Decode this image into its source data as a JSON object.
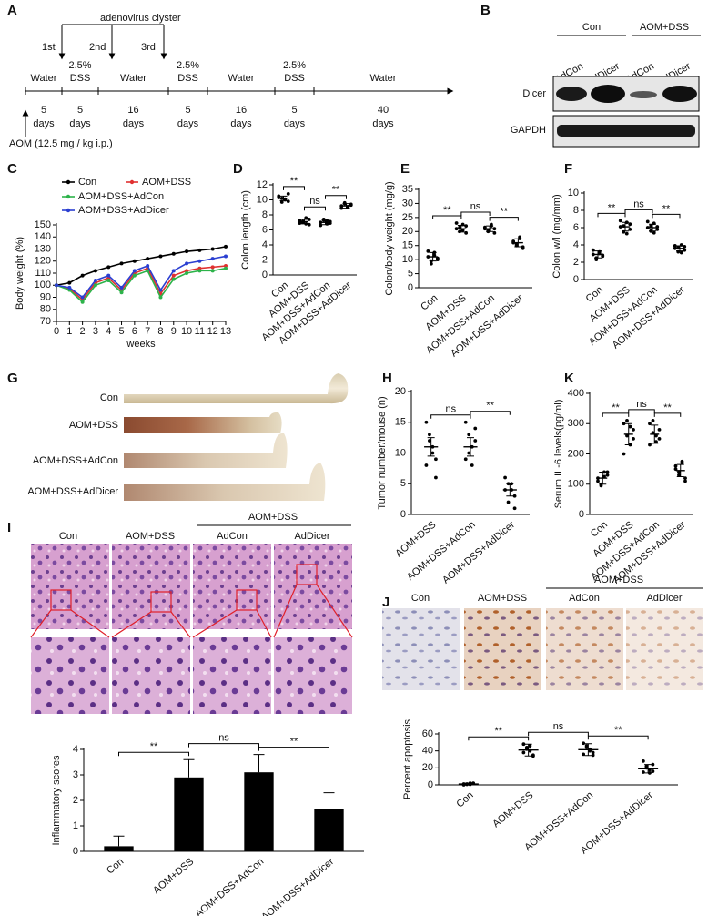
{
  "panels": [
    "A",
    "B",
    "C",
    "D",
    "E",
    "F",
    "G",
    "H",
    "K",
    "I",
    "J"
  ],
  "timeline": {
    "title": "adenovirus clyster",
    "doses": [
      "1st",
      "2nd",
      "3rd"
    ],
    "phases": [
      {
        "treatment": [
          "Water"
        ],
        "duration": [
          "5",
          "days"
        ]
      },
      {
        "treatment": [
          "2.5%",
          "DSS"
        ],
        "duration": [
          "5",
          "days"
        ]
      },
      {
        "treatment": [
          "Water"
        ],
        "duration": [
          "16",
          "days"
        ]
      },
      {
        "treatment": [
          "2.5%",
          "DSS"
        ],
        "duration": [
          "5",
          "days"
        ]
      },
      {
        "treatment": [
          "Water"
        ],
        "duration": [
          "16",
          "days"
        ]
      },
      {
        "treatment": [
          "2.5%",
          "DSS"
        ],
        "duration": [
          "5",
          "days"
        ]
      },
      {
        "treatment": [
          "Water"
        ],
        "duration": [
          "40",
          "days"
        ]
      }
    ],
    "aom": "AOM (12.5 mg / kg i.p.)"
  },
  "blot": {
    "groups": [
      "Con",
      "AOM+DSS"
    ],
    "lanes": [
      "AdCon",
      "AdDicer",
      "AdCon",
      "AdDicer"
    ],
    "proteins": [
      "Dicer",
      "GAPDH"
    ]
  },
  "colon_photos": {
    "labels": [
      "Con",
      "AOM+DSS",
      "AOM+DSS+AdCon",
      "AOM+DSS+AdDicer"
    ]
  },
  "histology": {
    "group": "AOM+DSS",
    "labels": [
      "Con",
      "AOM+DSS",
      "AdCon",
      "AdDicer"
    ]
  },
  "ihc": {
    "group": "AOM+DSS",
    "labels": [
      "Con",
      "AOM+DSS",
      "AdCon",
      "AdDicer"
    ]
  },
  "chart_data": [
    {
      "type": "line",
      "xlabel": "weeks",
      "ylabel": "Body weight (%)",
      "x": [
        0,
        1,
        2,
        3,
        4,
        5,
        6,
        7,
        8,
        9,
        10,
        11,
        12,
        13
      ],
      "xlim": [
        0,
        13
      ],
      "xticks": [
        0,
        1,
        2,
        3,
        4,
        5,
        6,
        7,
        8,
        9,
        10,
        11,
        12,
        13
      ],
      "ylim": [
        70,
        150
      ],
      "yticks": [
        70,
        80,
        90,
        100,
        110,
        120,
        130,
        140,
        150
      ],
      "series": [
        {
          "name": "Con",
          "color": "#000000",
          "values": [
            100,
            102,
            108,
            112,
            115,
            118,
            120,
            122,
            124,
            126,
            128,
            129,
            130,
            132
          ]
        },
        {
          "name": "AOM+DSS",
          "color": "#e03030",
          "values": [
            100,
            97,
            88,
            102,
            106,
            96,
            110,
            114,
            93,
            108,
            112,
            114,
            115,
            116
          ]
        },
        {
          "name": "AOM+DSS+AdCon",
          "color": "#2db34a",
          "values": [
            100,
            96,
            86,
            100,
            104,
            94,
            108,
            112,
            90,
            105,
            110,
            112,
            112,
            114
          ]
        },
        {
          "name": "AOM+DSS+AdDicer",
          "color": "#2b3fd1",
          "values": [
            100,
            98,
            90,
            104,
            108,
            98,
            112,
            116,
            96,
            112,
            118,
            120,
            122,
            124
          ]
        }
      ]
    },
    {
      "type": "dot",
      "ylabel": "Colon length (cm)",
      "categories": [
        "Con",
        "AOM+DSS",
        "AOM+DSS+AdCon",
        "AOM+DSS+AdDicer"
      ],
      "ylim": [
        0,
        12
      ],
      "yticks": [
        0,
        2,
        4,
        6,
        8,
        10,
        12
      ],
      "values": [
        10.2,
        7.1,
        7.0,
        9.2
      ],
      "errors": [
        0.3,
        0.3,
        0.3,
        0.3
      ],
      "points": [
        [
          10.5,
          10.2,
          10,
          9.8,
          10.3,
          9.7,
          10.1,
          10.8
        ],
        [
          7.2,
          7,
          6.8,
          7.4,
          6.9,
          7.1,
          7.6,
          6.7
        ],
        [
          7,
          7.3,
          6.8,
          7.1,
          6.6,
          7.4,
          7.2,
          6.9
        ],
        [
          9.2,
          9.5,
          9,
          9.3,
          8.9,
          9.6,
          9.1,
          9.4
        ]
      ],
      "comparisons": [
        {
          "label": "**",
          "between": [
            0,
            1
          ]
        },
        {
          "label": "ns",
          "between": [
            1,
            2
          ]
        },
        {
          "label": "**",
          "between": [
            2,
            3
          ]
        }
      ]
    },
    {
      "type": "dot",
      "ylabel": "Colon/body weight (mg/g)",
      "categories": [
        "Con",
        "AOM+DSS",
        "AOM+DSS+AdCon",
        "AOM+DSS+AdDicer"
      ],
      "ylim": [
        0,
        35
      ],
      "yticks": [
        0,
        5,
        10,
        15,
        20,
        25,
        30,
        35
      ],
      "values": [
        11,
        21,
        21,
        16
      ],
      "errors": [
        1.5,
        1.2,
        1,
        1.4
      ],
      "points": [
        [
          11,
          9.5,
          12.5,
          10,
          13,
          8.5,
          11.5,
          10.5
        ],
        [
          21,
          20,
          22.5,
          19.5,
          23,
          21.5,
          20.5,
          22
        ],
        [
          21,
          20.5,
          22,
          19.5,
          21.5,
          20,
          22.5,
          21
        ],
        [
          16,
          15,
          17.5,
          14.5,
          16.5,
          15.5,
          18,
          14
        ]
      ],
      "comparisons": [
        {
          "label": "**",
          "between": [
            0,
            1
          ]
        },
        {
          "label": "ns",
          "between": [
            1,
            2
          ]
        },
        {
          "label": "**",
          "between": [
            2,
            3
          ]
        }
      ]
    },
    {
      "type": "dot",
      "ylabel": "Colon w/l (mg/mm)",
      "categories": [
        "Con",
        "AOM+DSS",
        "AOM+DSS+AdCon",
        "AOM+DSS+AdDicer"
      ],
      "ylim": [
        0,
        10
      ],
      "yticks": [
        0,
        2,
        4,
        6,
        8,
        10
      ],
      "values": [
        2.9,
        6.1,
        6.0,
        3.6
      ],
      "errors": [
        0.4,
        0.5,
        0.4,
        0.3
      ],
      "points": [
        [
          2.9,
          2.5,
          3.2,
          2.7,
          3.4,
          2.3,
          3,
          2.8
        ],
        [
          6.1,
          5.5,
          6.6,
          5.8,
          6.8,
          6.2,
          5.3,
          6.4
        ],
        [
          6,
          5.6,
          6.5,
          5.8,
          6.7,
          6.2,
          5.4,
          6.1
        ],
        [
          3.6,
          3.2,
          4,
          3.4,
          3.9,
          3.7,
          3.1,
          3.8
        ]
      ],
      "comparisons": [
        {
          "label": "**",
          "between": [
            0,
            1
          ]
        },
        {
          "label": "ns",
          "between": [
            1,
            2
          ]
        },
        {
          "label": "**",
          "between": [
            2,
            3
          ]
        }
      ]
    },
    {
      "type": "dot",
      "ylabel": "Tumor number/mouse (n)",
      "categories": [
        "AOM+DSS",
        "AOM+DSS+AdCon",
        "AOM+DSS+AdDicer"
      ],
      "ylim": [
        0,
        20
      ],
      "yticks": [
        0,
        5,
        10,
        15,
        20
      ],
      "values": [
        11,
        11,
        4
      ],
      "errors": [
        1.5,
        1.5,
        1
      ],
      "points": [
        [
          15,
          13,
          11,
          9,
          8,
          12,
          10,
          6
        ],
        [
          15,
          13,
          11,
          12,
          9,
          10,
          8,
          14
        ],
        [
          6,
          5,
          4,
          3,
          4,
          2,
          5,
          1
        ]
      ],
      "comparisons": [
        {
          "label": "ns",
          "between": [
            0,
            1
          ]
        },
        {
          "label": "**",
          "between": [
            1,
            2
          ]
        }
      ]
    },
    {
      "type": "dot",
      "ylabel": "Serum IL-6 levels(pg/ml)",
      "categories": [
        "Con",
        "AOM+DSS",
        "AOM+DSS+AdCon",
        "AOM+DSS+AdDicer"
      ],
      "ylim": [
        0,
        400
      ],
      "yticks": [
        0,
        100,
        200,
        300,
        400
      ],
      "values": [
        120,
        265,
        265,
        145
      ],
      "errors": [
        20,
        35,
        30,
        20
      ],
      "points": [
        [
          120,
          100,
          140,
          130,
          110,
          95,
          125,
          140
        ],
        [
          300,
          260,
          230,
          280,
          200,
          310,
          290,
          250
        ],
        [
          300,
          270,
          240,
          280,
          230,
          310,
          260,
          250
        ],
        [
          150,
          130,
          170,
          120,
          160,
          140,
          175,
          110
        ]
      ],
      "comparisons": [
        {
          "label": "**",
          "between": [
            0,
            1
          ]
        },
        {
          "label": "ns",
          "between": [
            1,
            2
          ]
        },
        {
          "label": "**",
          "between": [
            2,
            3
          ]
        }
      ]
    },
    {
      "type": "bar",
      "ylabel": "Inflammatory scores",
      "categories": [
        "Con",
        "AOM+DSS",
        "AOM+DSS+AdCon",
        "AOM+DSS+AdDicer"
      ],
      "ylim": [
        0,
        4
      ],
      "yticks": [
        0,
        1,
        2,
        3,
        4
      ],
      "color": "#000000",
      "values": [
        0.2,
        2.9,
        3.1,
        1.65
      ],
      "errors": [
        0.4,
        0.7,
        0.7,
        0.65
      ],
      "comparisons": [
        {
          "label": "**",
          "between": [
            0,
            1
          ]
        },
        {
          "label": "ns",
          "between": [
            1,
            2
          ]
        },
        {
          "label": "**",
          "between": [
            2,
            3
          ]
        }
      ]
    },
    {
      "type": "dot",
      "ylabel": "Percent apoptosis",
      "categories": [
        "Con",
        "AOM+DSS",
        "AOM+DSS+AdCon",
        "AOM+DSS+AdDicer"
      ],
      "ylim": [
        0,
        60
      ],
      "yticks": [
        0,
        20,
        40,
        60
      ],
      "values": [
        1,
        41,
        41.5,
        19
      ],
      "errors": [
        1,
        7,
        7,
        5
      ],
      "points": [
        [
          1,
          0.5,
          2,
          1.5,
          0,
          1,
          0.5,
          2
        ],
        [
          48,
          44,
          40,
          35,
          38,
          42,
          46,
          34
        ],
        [
          49,
          46,
          42,
          38,
          36,
          44,
          40,
          35
        ],
        [
          28,
          22,
          18,
          16,
          15,
          20,
          14,
          24
        ]
      ],
      "comparisons": [
        {
          "label": "**",
          "between": [
            0,
            1
          ]
        },
        {
          "label": "ns",
          "between": [
            1,
            2
          ]
        },
        {
          "label": "**",
          "between": [
            2,
            3
          ]
        }
      ]
    }
  ]
}
